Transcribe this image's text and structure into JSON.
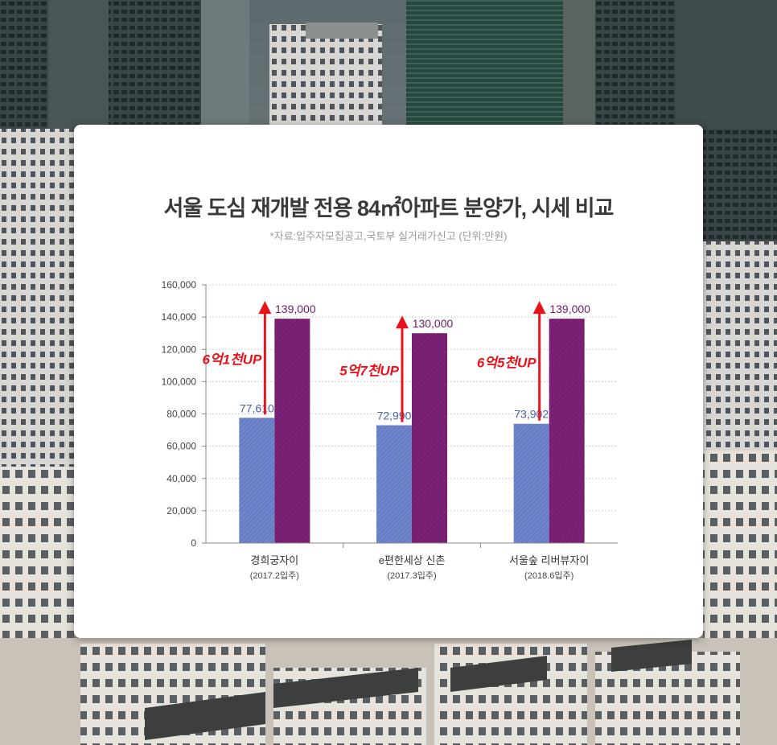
{
  "chart_data": {
    "type": "bar",
    "title": "서울 도심 재개발 전용 84㎡아파트 분양가, 시세 비교",
    "subtitle": "*자료:입주자모집공고,국토부 실거래가신고 (단위:만원)",
    "categories": [
      {
        "name": "경희궁자이",
        "sub": "(2017.2입주)"
      },
      {
        "name": "e편한세상 신촌",
        "sub": "(2017.3입주)"
      },
      {
        "name": "서울숲 리버뷰자이",
        "sub": "(2018.6입주)"
      }
    ],
    "series": [
      {
        "values": [
          77610,
          72990,
          73902
        ],
        "labels": [
          "77,610",
          "72,990",
          "73,902"
        ],
        "color": "#6a7fc6",
        "label_color": "#4a5fae"
      },
      {
        "values": [
          139000,
          130000,
          139000
        ],
        "labels": [
          "139,000",
          "130,000",
          "139,000"
        ],
        "color": "#7a1f72",
        "label_color": "#6e1a66"
      }
    ],
    "annotations": [
      "6억1천UP",
      "5억7천UP",
      "6억5천UP"
    ],
    "annotation_color": "#e8141c",
    "ylim": [
      0,
      160000
    ],
    "yticks": [
      "0",
      "20,000",
      "40,000",
      "60,000",
      "80,000",
      "100,000",
      "120,000",
      "140,000",
      "160,000"
    ],
    "grid": true
  }
}
